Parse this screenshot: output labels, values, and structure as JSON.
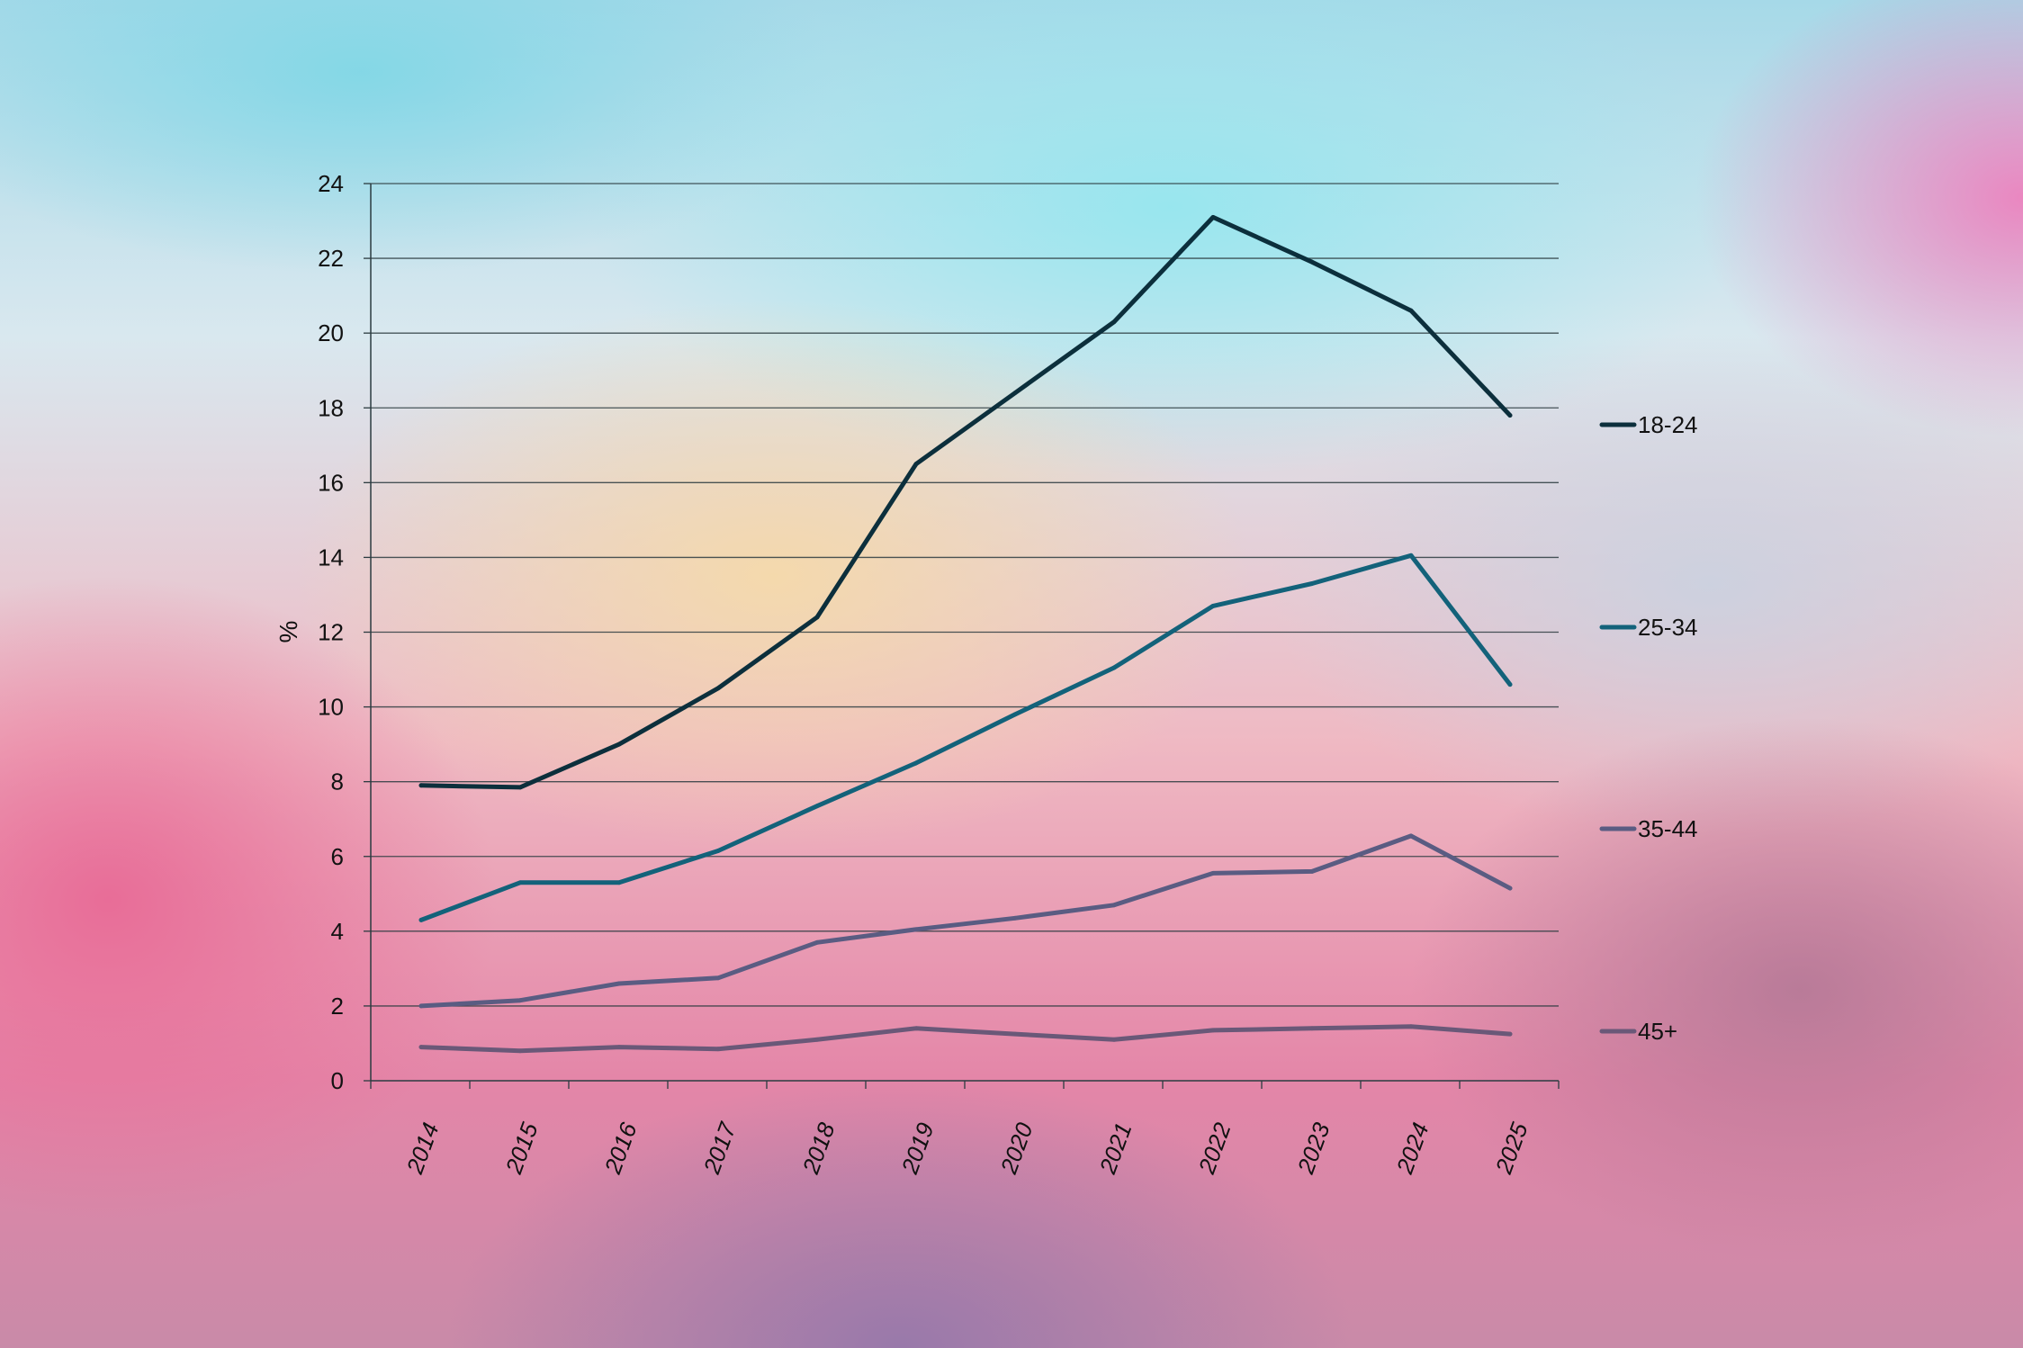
{
  "chart_data": {
    "type": "line",
    "title": "",
    "xlabel": "",
    "ylabel": "%",
    "ylim": [
      0,
      24
    ],
    "yticks": [
      0,
      2,
      4,
      6,
      8,
      10,
      12,
      14,
      16,
      18,
      20,
      22,
      24
    ],
    "grid": true,
    "legend_position": "right",
    "categories": [
      "2014",
      "2015",
      "2016",
      "2017",
      "2018",
      "2019",
      "2020",
      "2021",
      "2022",
      "2023",
      "2024",
      "2025"
    ],
    "series": [
      {
        "name": "18-24",
        "color": "#0c2f3c",
        "values": [
          7.9,
          7.85,
          9.0,
          10.5,
          12.4,
          16.5,
          18.4,
          20.3,
          23.1,
          21.9,
          20.6,
          17.8
        ]
      },
      {
        "name": "25-34",
        "color": "#13627a",
        "values": [
          4.3,
          5.3,
          5.3,
          6.15,
          7.35,
          8.5,
          9.8,
          11.05,
          12.7,
          13.3,
          14.05,
          10.6
        ]
      },
      {
        "name": "35-44",
        "color": "#5a5c82",
        "values": [
          2.0,
          2.15,
          2.6,
          2.75,
          3.7,
          4.05,
          4.35,
          4.7,
          5.55,
          5.6,
          6.55,
          5.15
        ]
      },
      {
        "name": "45+",
        "color": "#6a5878",
        "values": [
          0.9,
          0.8,
          0.9,
          0.85,
          1.1,
          1.4,
          1.25,
          1.1,
          1.35,
          1.4,
          1.45,
          1.25
        ]
      }
    ]
  }
}
